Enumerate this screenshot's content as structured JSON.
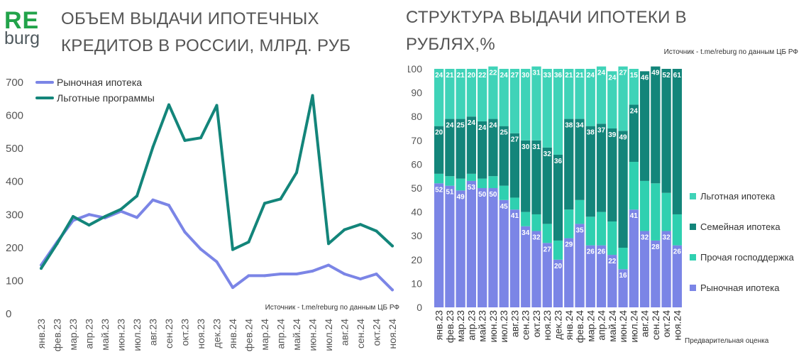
{
  "logo": {
    "line1": "RE",
    "line2": "burg"
  },
  "chart_data": [
    {
      "type": "line",
      "title": "ОБЪЕМ ВЫДАЧИ ИПОТЕЧНЫХ КРЕДИТОВ В РОССИИ, МЛРД. РУБ",
      "x": [
        "янв.23",
        "фев.23",
        "мар.23",
        "апр.23",
        "май.23",
        "июн.23",
        "июл.23",
        "авг.23",
        "сен.23",
        "окт.23",
        "ноя.23",
        "дек.23",
        "янв.24",
        "фев.24",
        "мар.24",
        "апр.24",
        "май.24",
        "июн.24",
        "июл.24",
        "авг.24",
        "сен.24",
        "окт.24",
        "ноя.24"
      ],
      "ylim": [
        0,
        700
      ],
      "yticks": [
        "0",
        "100",
        "200",
        "300",
        "400",
        "500",
        "600",
        "700"
      ],
      "series": [
        {
          "name": "Рыночная ипотека",
          "color": "#7b85e6",
          "values": [
            145,
            215,
            280,
            298,
            288,
            308,
            289,
            342,
            326,
            245,
            193,
            155,
            77,
            113,
            113,
            118,
            118,
            127,
            145,
            118,
            103,
            118,
            70
          ]
        },
        {
          "name": "Льготные программы",
          "color": "#13857a",
          "values": [
            135,
            210,
            292,
            266,
            292,
            314,
            354,
            502,
            630,
            522,
            530,
            628,
            192,
            215,
            332,
            345,
            425,
            658,
            210,
            252,
            268,
            248,
            203
          ]
        }
      ],
      "legend": "top-left",
      "source": "Источник  - t.me/reburg по данным  ЦБ РФ"
    },
    {
      "type": "bar",
      "stacked": true,
      "title": "СТРУКТУРА ВЫДАЧИ ИПОТЕКИ В РУБЛЯХ,%",
      "source": "Источник  - t.me/reburg по данным  ЦБ РФ",
      "note": "Предварительная оценка",
      "categories": [
        "янв.23",
        "фев.23",
        "мар.23",
        "апр.23",
        "май.23",
        "июн.23",
        "июл.23",
        "авг.23",
        "сен.23",
        "окт.23",
        "ноя.23",
        "дек.23",
        "янв.24",
        "фев.24",
        "мар.24",
        "апр.24",
        "май.24",
        "июн.24",
        "июл.24",
        "авг.24",
        "сен.24",
        "окт.24",
        "ноя.24"
      ],
      "ylim": [
        0,
        100
      ],
      "yticks": [
        "0",
        "10",
        "20",
        "30",
        "40",
        "50",
        "60",
        "70",
        "80",
        "90",
        "100"
      ],
      "legend": "right",
      "series": [
        {
          "name": "Рыночная ипотека",
          "color": "#7b85e6",
          "labeled": true,
          "values": [
            52,
            51,
            49,
            53,
            50,
            50,
            45,
            41,
            34,
            32,
            27,
            20,
            29,
            35,
            26,
            26,
            22,
            16,
            41,
            32,
            28,
            32,
            26
          ]
        },
        {
          "name": "Прочая господдержка",
          "color": "#2fd0b0",
          "labeled": false,
          "values": [
            4,
            4,
            5,
            3,
            4,
            5,
            6,
            5,
            6,
            7,
            8,
            8,
            12,
            10,
            12,
            14,
            14,
            9,
            20,
            21,
            24,
            16,
            13
          ]
        },
        {
          "name": "Семейная ипотека",
          "color": "#13857a",
          "labeled": true,
          "values": [
            20,
            24,
            25,
            24,
            24,
            24,
            25,
            27,
            30,
            31,
            32,
            36,
            38,
            34,
            38,
            37,
            39,
            49,
            24,
            46,
            49,
            52,
            61
          ]
        },
        {
          "name": "Льготная ипотека",
          "color": "#3fd3b8",
          "labeled": true,
          "values": [
            24,
            21,
            21,
            20,
            22,
            22,
            24,
            27,
            30,
            31,
            33,
            36,
            21,
            21,
            24,
            24,
            24,
            27,
            15,
            0,
            0,
            0,
            0
          ]
        }
      ]
    }
  ]
}
